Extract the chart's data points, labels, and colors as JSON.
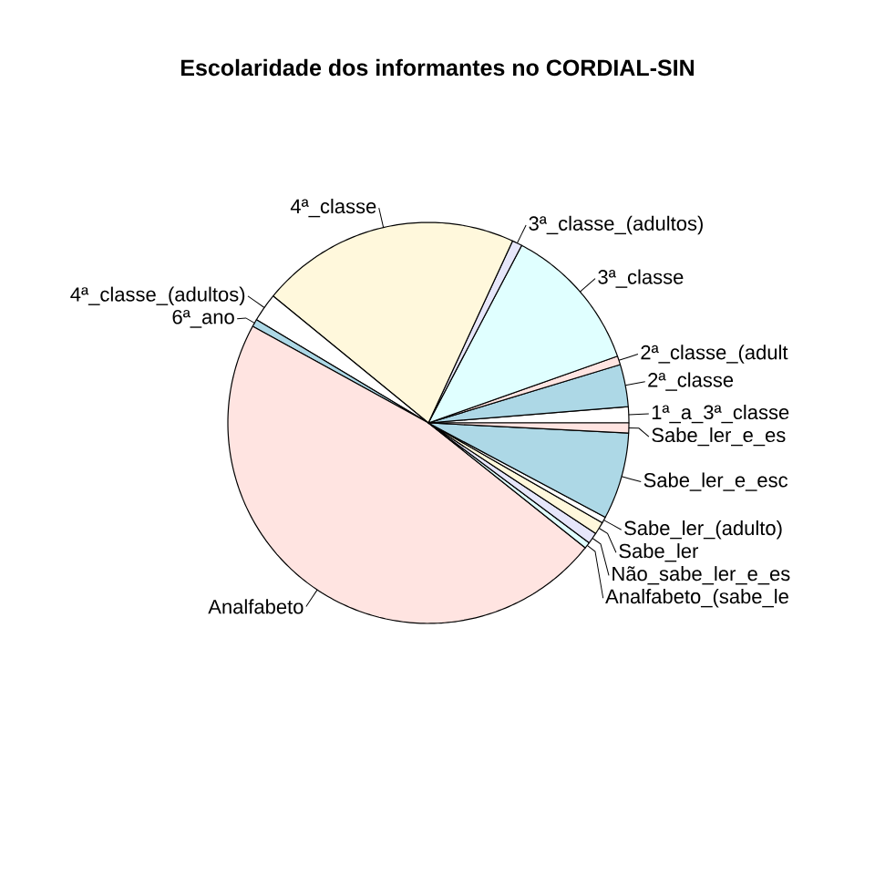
{
  "chart_data": {
    "type": "pie",
    "title": "Escolaridade dos informantes no CORDIAL-SIN",
    "categories": [
      "1ª_a_3ª_classe",
      "2ª_classe",
      "2ª_classe_(adult",
      "3ª_classe",
      "3ª_classe_(adultos)",
      "4ª_classe",
      "4ª_classe_(adultos)",
      "6ª_ano",
      "Analfabeto",
      "Analfabeto_(sabe_le",
      "Não_sabe_ler_e_es",
      "Sabe_ler",
      "Sabe_ler_(adulto)",
      "Sabe_ler_e_esc",
      "Sabe_ler_e_es"
    ],
    "values": [
      1.3,
      3.4,
      0.7,
      11.9,
      0.8,
      21,
      2.3,
      0.6,
      47.3,
      0.5,
      0.9,
      1,
      0.5,
      7,
      0.8
    ],
    "colors": [
      "#ffffff",
      "#add8e6",
      "#ffe4e1",
      "#e0ffff",
      "#e6e6fa",
      "#fff8dc",
      "#ffffff",
      "#add8e6",
      "#ffe4e1",
      "#e0ffff",
      "#e6e6fa",
      "#fff8dc",
      "#ffffff",
      "#add8e6",
      "#ffe4e1"
    ]
  }
}
